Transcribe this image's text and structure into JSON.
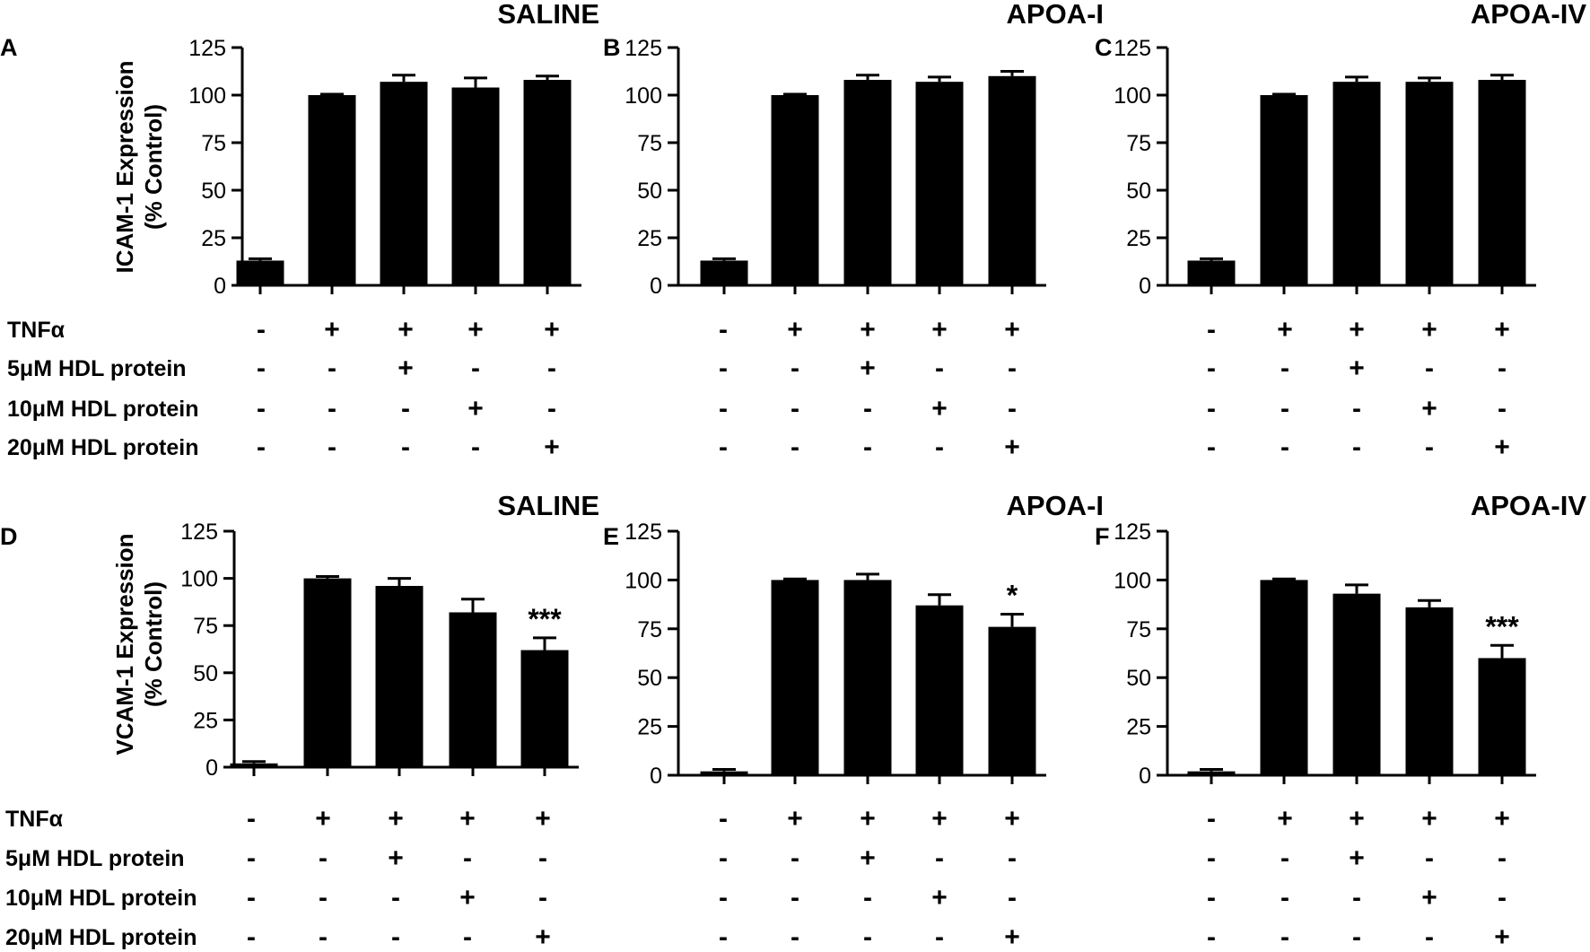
{
  "figure": {
    "treatment_rows": [
      "TNFα",
      "5μM HDL protein",
      "10μM HDL protein",
      "20μM HDL protein"
    ],
    "treatment_signs": [
      [
        "-",
        "+",
        "+",
        "+",
        "+"
      ],
      [
        "-",
        "-",
        "+",
        "-",
        "-"
      ],
      [
        "-",
        "-",
        "-",
        "+",
        "-"
      ],
      [
        "-",
        "-",
        "-",
        "-",
        "+"
      ]
    ]
  },
  "chart_data": [
    {
      "letter": "A",
      "title": "SALINE",
      "type": "bar",
      "ylabel_line1": "ICAM-1  Expression",
      "ylabel_line2": "(% Control)",
      "ylim": [
        0,
        125
      ],
      "yticks": [
        0,
        25,
        50,
        75,
        100,
        125
      ],
      "values": [
        13,
        100,
        107,
        104,
        108
      ],
      "errors": [
        1,
        0.5,
        3.5,
        5,
        2
      ],
      "sig": [
        "",
        "",
        "",
        "",
        ""
      ]
    },
    {
      "letter": "B",
      "title": "APOA-I",
      "type": "bar",
      "ylabel_line1": "",
      "ylabel_line2": "",
      "ylim": [
        0,
        125
      ],
      "yticks": [
        0,
        25,
        50,
        75,
        100,
        125
      ],
      "values": [
        13,
        100,
        108,
        107,
        110
      ],
      "errors": [
        1,
        0.5,
        2.5,
        2.5,
        2.5
      ],
      "sig": [
        "",
        "",
        "",
        "",
        ""
      ]
    },
    {
      "letter": "C",
      "title": "APOA-IV",
      "type": "bar",
      "ylabel_line1": "",
      "ylabel_line2": "",
      "ylim": [
        0,
        125
      ],
      "yticks": [
        0,
        25,
        50,
        75,
        100,
        125
      ],
      "values": [
        13,
        100,
        107,
        107,
        108
      ],
      "errors": [
        1,
        0.5,
        2.5,
        2,
        2.5
      ],
      "sig": [
        "",
        "",
        "",
        "",
        ""
      ]
    },
    {
      "letter": "D",
      "title": "SALINE",
      "type": "bar",
      "ylabel_line1": "VCAM-1  Expression",
      "ylabel_line2": "(% Control)",
      "ylim": [
        0,
        125
      ],
      "yticks": [
        0,
        25,
        50,
        75,
        100,
        125
      ],
      "values": [
        2,
        100,
        96,
        82,
        62
      ],
      "errors": [
        1,
        1,
        4,
        7,
        6.5
      ],
      "sig": [
        "",
        "",
        "",
        "",
        "***"
      ]
    },
    {
      "letter": "E",
      "title": "APOA-I",
      "type": "bar",
      "ylabel_line1": "",
      "ylabel_line2": "",
      "ylim": [
        0,
        125
      ],
      "yticks": [
        0,
        25,
        50,
        75,
        100,
        125
      ],
      "values": [
        2,
        100,
        100,
        87,
        76
      ],
      "errors": [
        1,
        0.5,
        3,
        5.5,
        6.5
      ],
      "sig": [
        "",
        "",
        "",
        "",
        "*"
      ]
    },
    {
      "letter": "F",
      "title": "APOA-IV",
      "type": "bar",
      "ylabel_line1": "",
      "ylabel_line2": "",
      "ylim": [
        0,
        125
      ],
      "yticks": [
        0,
        25,
        50,
        75,
        100,
        125
      ],
      "values": [
        2,
        100,
        93,
        86,
        60
      ],
      "errors": [
        1,
        0.5,
        4.5,
        3.5,
        6.5
      ],
      "sig": [
        "",
        "",
        "",
        "",
        "***"
      ]
    }
  ]
}
